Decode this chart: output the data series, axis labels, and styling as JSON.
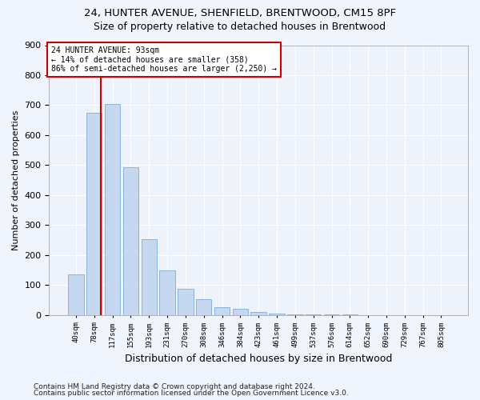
{
  "title1": "24, HUNTER AVENUE, SHENFIELD, BRENTWOOD, CM15 8PF",
  "title2": "Size of property relative to detached houses in Brentwood",
  "xlabel": "Distribution of detached houses by size in Brentwood",
  "ylabel": "Number of detached properties",
  "footnote1": "Contains HM Land Registry data © Crown copyright and database right 2024.",
  "footnote2": "Contains public sector information licensed under the Open Government Licence v3.0.",
  "bar_labels": [
    "40sqm",
    "78sqm",
    "117sqm",
    "155sqm",
    "193sqm",
    "231sqm",
    "270sqm",
    "308sqm",
    "346sqm",
    "384sqm",
    "423sqm",
    "461sqm",
    "499sqm",
    "537sqm",
    "576sqm",
    "614sqm",
    "652sqm",
    "690sqm",
    "729sqm",
    "767sqm",
    "805sqm"
  ],
  "bar_values": [
    135,
    675,
    705,
    492,
    252,
    150,
    87,
    52,
    25,
    20,
    10,
    6,
    3,
    2,
    1,
    0.8,
    0.5,
    0.5,
    0.3,
    0.3,
    0.2
  ],
  "bar_color": "#c5d8f0",
  "bar_edge_color": "#7aabda",
  "vline_color": "#cc0000",
  "annotation_box_color": "#cc0000",
  "ylim": [
    0,
    900
  ],
  "yticks": [
    0,
    100,
    200,
    300,
    400,
    500,
    600,
    700,
    800,
    900
  ],
  "background_color": "#eef2fb",
  "grid_color": "#ffffff",
  "property_size_label": "24 HUNTER AVENUE: 93sqm",
  "annotation_line1": "← 14% of detached houses are smaller (358)",
  "annotation_line2": "86% of semi-detached houses are larger (2,250) →",
  "vline_x_index": 1.38
}
